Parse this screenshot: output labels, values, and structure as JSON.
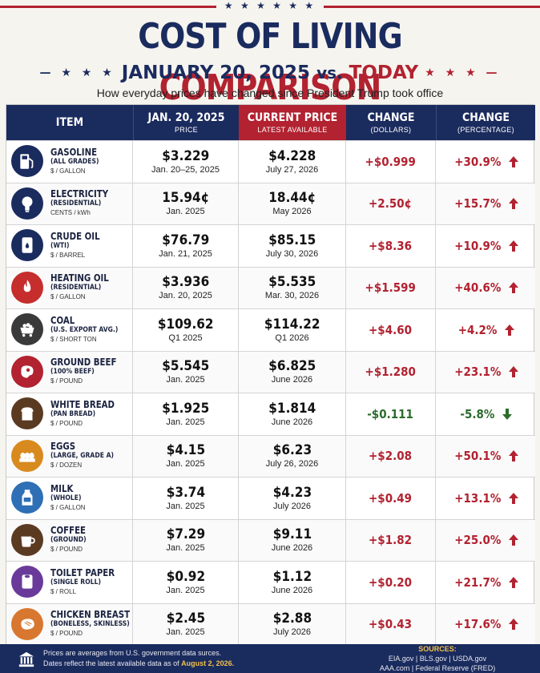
{
  "header": {
    "stars": "★ ★ ★ ★ ★ ★",
    "title_part1": "COST OF LIVING",
    "title_part2": "COMPARISON",
    "subtitle_left_deco": "— ★ ★ ★",
    "subtitle_date": "JANUARY 20, 2025",
    "subtitle_vs": "vs.",
    "subtitle_today": "TODAY",
    "subtitle_right_deco": "★ ★ ★ —",
    "tagline": "How everyday prices have changed since President Trump took office"
  },
  "columns": {
    "item": "ITEM",
    "jan_title": "JAN. 20, 2025",
    "jan_sub": "PRICE",
    "cur_title": "CURRENT PRICE",
    "cur_sub": "LATEST AVAILABLE",
    "cd_title": "CHANGE",
    "cd_sub": "(DOLLARS)",
    "cp_title": "CHANGE",
    "cp_sub": "(PERCENTAGE)"
  },
  "rows": [
    {
      "name": "GASOLINE",
      "sub": "(ALL GRADES)",
      "unit": "$ / GALLON",
      "jan": "$3.229",
      "jan_date": "Jan. 20–25, 2025",
      "cur": "$4.228",
      "cur_date": "July 27, 2026",
      "chg": "+$0.999",
      "pct": "+30.9%",
      "dir": "up",
      "icon": "gas-pump-icon",
      "icon_bg": "#1a2b5e"
    },
    {
      "name": "ELECTRICITY",
      "sub": "(RESIDENTIAL)",
      "unit": "CENTS / kWh",
      "jan": "15.94¢",
      "jan_date": "Jan. 2025",
      "cur": "18.44¢",
      "cur_date": "May 2026",
      "chg": "+2.50¢",
      "pct": "+15.7%",
      "dir": "up",
      "icon": "light-bulb-icon",
      "icon_bg": "#1a2b5e"
    },
    {
      "name": "CRUDE OIL",
      "sub": "(WTI)",
      "unit": "$ / BARREL",
      "jan": "$76.79",
      "jan_date": "Jan. 21, 2025",
      "cur": "$85.15",
      "cur_date": "July 30, 2026",
      "chg": "+$8.36",
      "pct": "+10.9%",
      "dir": "up",
      "icon": "oil-barrel-icon",
      "icon_bg": "#1a2b5e"
    },
    {
      "name": "HEATING OIL",
      "sub": "(RESIDENTIAL)",
      "unit": "$ / GALLON",
      "jan": "$3.936",
      "jan_date": "Jan. 20, 2025",
      "cur": "$5.535",
      "cur_date": "Mar. 30, 2026",
      "chg": "+$1.599",
      "pct": "+40.6%",
      "dir": "up",
      "icon": "flame-icon",
      "icon_bg": "#c62d2d"
    },
    {
      "name": "COAL",
      "sub": "(U.S. EXPORT AVG.)",
      "unit": "$ / SHORT TON",
      "jan": "$109.62",
      "jan_date": "Q1 2025",
      "cur": "$114.22",
      "cur_date": "Q1 2026",
      "chg": "+$4.60",
      "pct": "+4.2%",
      "dir": "up",
      "icon": "coal-cart-icon",
      "icon_bg": "#3a3a3a"
    },
    {
      "name": "GROUND BEEF",
      "sub": "(100% BEEF)",
      "unit": "$ / POUND",
      "jan": "$5.545",
      "jan_date": "Jan. 2025",
      "cur": "$6.825",
      "cur_date": "June 2026",
      "chg": "+$1.280",
      "pct": "+23.1%",
      "dir": "up",
      "icon": "steak-icon",
      "icon_bg": "#b22230"
    },
    {
      "name": "WHITE BREAD",
      "sub": "(PAN BREAD)",
      "unit": "$ / POUND",
      "jan": "$1.925",
      "jan_date": "Jan. 2025",
      "cur": "$1.814",
      "cur_date": "June 2026",
      "chg": "-$0.111",
      "pct": "-5.8%",
      "dir": "down",
      "icon": "bread-icon",
      "icon_bg": "#5b3a22"
    },
    {
      "name": "EGGS",
      "sub": "(LARGE, GRADE A)",
      "unit": "$ / DOZEN",
      "jan": "$4.15",
      "jan_date": "Jan. 2025",
      "cur": "$6.23",
      "cur_date": "July 26, 2026",
      "chg": "+$2.08",
      "pct": "+50.1%",
      "dir": "up",
      "icon": "eggs-icon",
      "icon_bg": "#d88a1f"
    },
    {
      "name": "MILK",
      "sub": "(WHOLE)",
      "unit": "$ / GALLON",
      "jan": "$3.74",
      "jan_date": "Jan. 2025",
      "cur": "$4.23",
      "cur_date": "July 2026",
      "chg": "+$0.49",
      "pct": "+13.1%",
      "dir": "up",
      "icon": "milk-jug-icon",
      "icon_bg": "#2f6fb5"
    },
    {
      "name": "COFFEE",
      "sub": "(GROUND)",
      "unit": "$ / POUND",
      "jan": "$7.29",
      "jan_date": "Jan. 2025",
      "cur": "$9.11",
      "cur_date": "June 2026",
      "chg": "+$1.82",
      "pct": "+25.0%",
      "dir": "up",
      "icon": "coffee-cup-icon",
      "icon_bg": "#5b3a22"
    },
    {
      "name": "TOILET PAPER",
      "sub": "(SINGLE ROLL)",
      "unit": "$ / ROLL",
      "jan": "$0.92",
      "jan_date": "Jan. 2025",
      "cur": "$1.12",
      "cur_date": "June 2026",
      "chg": "+$0.20",
      "pct": "+21.7%",
      "dir": "up",
      "icon": "toilet-paper-icon",
      "icon_bg": "#6a3a9a"
    },
    {
      "name": "CHICKEN BREAST",
      "sub": "(BONELESS, SKINLESS)",
      "unit": "$ / POUND",
      "jan": "$2.45",
      "jan_date": "Jan. 2025",
      "cur": "$2.88",
      "cur_date": "July 2026",
      "chg": "+$0.43",
      "pct": "+17.6%",
      "dir": "up",
      "icon": "chicken-breast-icon",
      "icon_bg": "#d8772f"
    }
  ],
  "footer": {
    "note_line1": "Prices are averages from U.S. government data surces.",
    "note_line2_prefix": "Dates reflect the latest available data as of",
    "note_date": "August 2, 2026.",
    "sources_title": "SOURCES:",
    "sources_line1": "EIA.gov | BLS.gov | USDA.gov",
    "sources_line2": "AAA.com | Federal Reserve (FRED)"
  },
  "colors": {
    "navy": "#1a2b5e",
    "red": "#b22230",
    "green": "#2c6b2c",
    "gold": "#f3c14a"
  }
}
